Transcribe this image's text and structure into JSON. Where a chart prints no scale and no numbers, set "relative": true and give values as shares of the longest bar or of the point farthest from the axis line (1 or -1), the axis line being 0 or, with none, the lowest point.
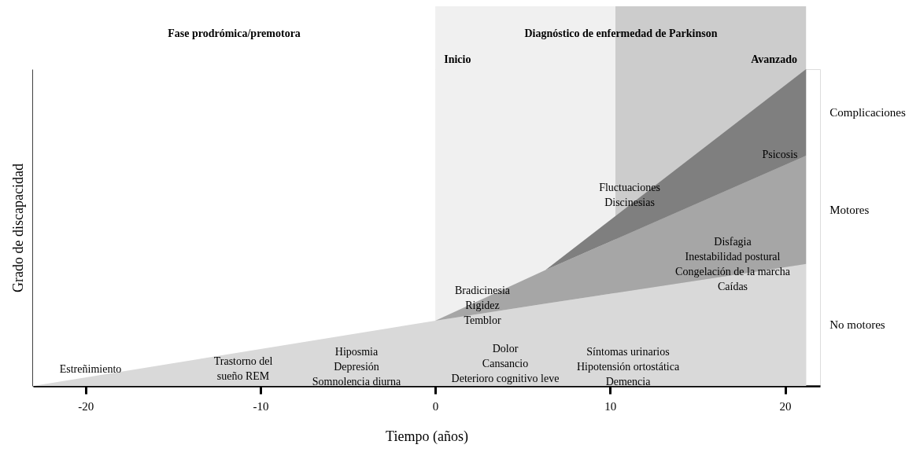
{
  "chart_data": {
    "type": "area",
    "relative": true,
    "stacked": true,
    "legend": false,
    "grid": false,
    "xlabel": "Tiempo (años)",
    "ylabel": "Grado de discapacidad",
    "xlim": [
      -23,
      22
    ],
    "xticks": [
      -20,
      -10,
      0,
      10,
      20
    ],
    "x": [
      -23,
      0,
      6.3,
      21.2
    ],
    "series": [
      {
        "name": "No motores",
        "color": "#d9d9d9",
        "values": [
          0,
          0.206,
          0.26,
          0.385
        ]
      },
      {
        "name": "Motores",
        "color": "#a6a6a6",
        "values": [
          0,
          0,
          0.106,
          0.342
        ]
      },
      {
        "name": "Complicaciones",
        "color": "#7f7f7f",
        "values": [
          null,
          null,
          0,
          0.273
        ]
      }
    ],
    "bands": [
      {
        "axis": "x",
        "from": -23,
        "to": 0,
        "label": "Fase prodrómica/premotora",
        "color": "#ffffff"
      },
      {
        "axis": "x",
        "from": 0,
        "to": 10.3,
        "label": "Inicio",
        "color": "#f0f0f0"
      },
      {
        "axis": "x",
        "from": 10.3,
        "to": 21.2,
        "label": "Avanzado",
        "color": "#cccccc"
      }
    ],
    "annotations": [
      "Diagnóstico de enfermedad de Parkinson",
      "Estreñimiento",
      "Trastorno del\nsueño REM",
      "Hiposmia\nDepresión\nSomnolencia diurna",
      "Dolor\nCansancio\nDeterioro cognitivo leve",
      "Síntomas urinarios\nHipotensión ortostática\nDemencia",
      "Bradicinesia\nRigidez\nTemblor",
      "Fluctuaciones\nDiscinesias",
      "Disfagia\nInestabilidad postural\nCongelación de la marcha\nCaídas",
      "Psicosis"
    ]
  }
}
